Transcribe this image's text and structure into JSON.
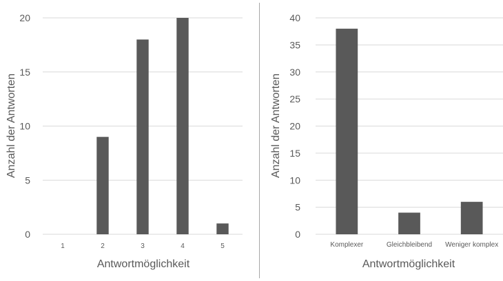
{
  "chart_data": [
    {
      "type": "bar",
      "categories": [
        "1",
        "2",
        "3",
        "4",
        "5"
      ],
      "values": [
        0,
        9,
        18,
        20,
        1
      ],
      "title": "",
      "xlabel": "Antwortmöglichkeit",
      "ylabel": "Anzahl der Antworten",
      "ylim": [
        0,
        20
      ],
      "yticks": [
        "0",
        "5",
        "10",
        "15",
        "20"
      ],
      "grid": true,
      "bar_color": "#595959"
    },
    {
      "type": "bar",
      "categories": [
        "Komplexer",
        "Gleichbleibend",
        "Weniger komplex"
      ],
      "values": [
        38,
        4,
        6
      ],
      "title": "",
      "xlabel": "Antwortmöglichkeit",
      "ylabel": "Anzahl der Antworten",
      "ylim": [
        0,
        40
      ],
      "yticks": [
        "0",
        "5",
        "10",
        "15",
        "20",
        "25",
        "30",
        "35",
        "40"
      ],
      "grid": true,
      "bar_color": "#595959"
    }
  ],
  "colors": {
    "bar": "#595959",
    "grid": "#d9d9d9",
    "axis": "#d9d9d9",
    "text": "#595959",
    "divider": "#a6a6a6"
  }
}
